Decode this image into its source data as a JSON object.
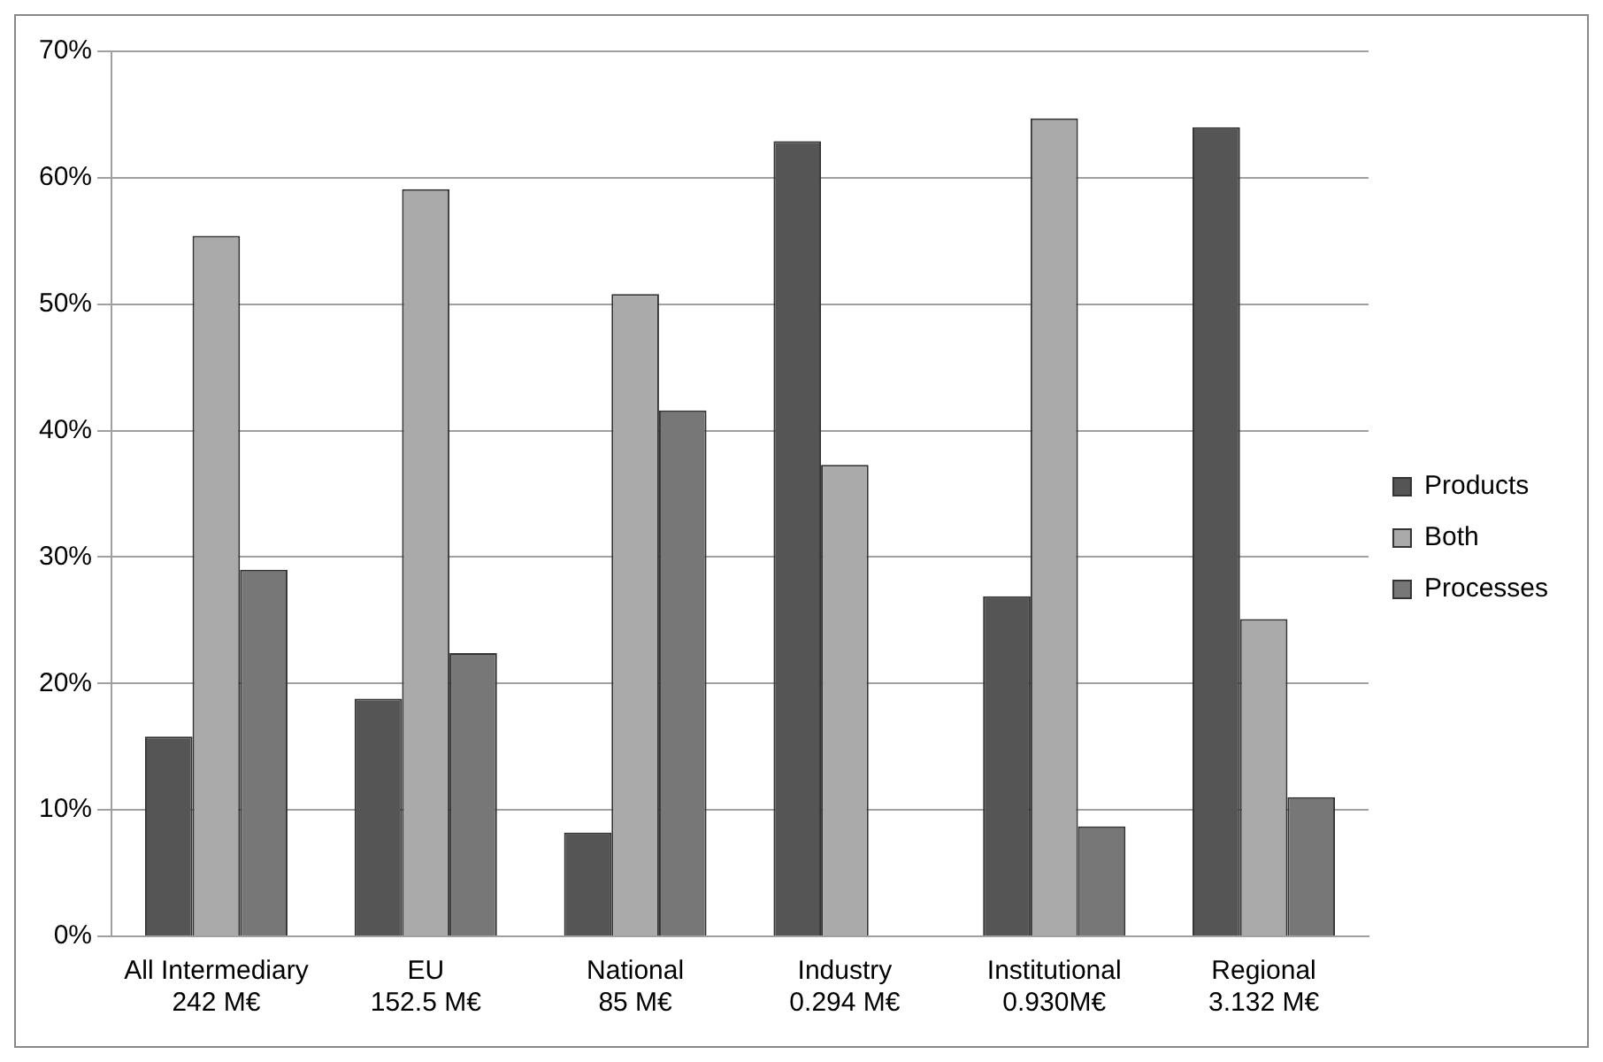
{
  "chart_data": {
    "type": "bar",
    "categories": [
      "All Intermediary\n242 M€",
      "EU\n152.5 M€",
      "National\n85 M€",
      "Industry\n0.294 M€",
      "Institutional\n0.930M€",
      "Regional\n3.132 M€"
    ],
    "series": [
      {
        "name": "Products",
        "color": "#555555",
        "values": [
          15.8,
          18.8,
          8.2,
          62.9,
          26.9,
          64.0
        ]
      },
      {
        "name": "Both",
        "color": "#aaaaaa",
        "values": [
          55.4,
          59.1,
          50.8,
          37.3,
          64.7,
          25.1
        ]
      },
      {
        "name": "Processes",
        "color": "#777777",
        "values": [
          29.0,
          22.4,
          41.6,
          null,
          8.7,
          11.0
        ]
      }
    ],
    "ylim": [
      0,
      70
    ],
    "yticks": [
      {
        "value": 0,
        "label": "0%"
      },
      {
        "value": 10,
        "label": "10%"
      },
      {
        "value": 20,
        "label": "20%"
      },
      {
        "value": 30,
        "label": "30%"
      },
      {
        "value": 40,
        "label": "40%"
      },
      {
        "value": 50,
        "label": "50%"
      },
      {
        "value": 60,
        "label": "60%"
      },
      {
        "value": 70,
        "label": "70%"
      }
    ],
    "grid": "y",
    "legend": "right"
  }
}
